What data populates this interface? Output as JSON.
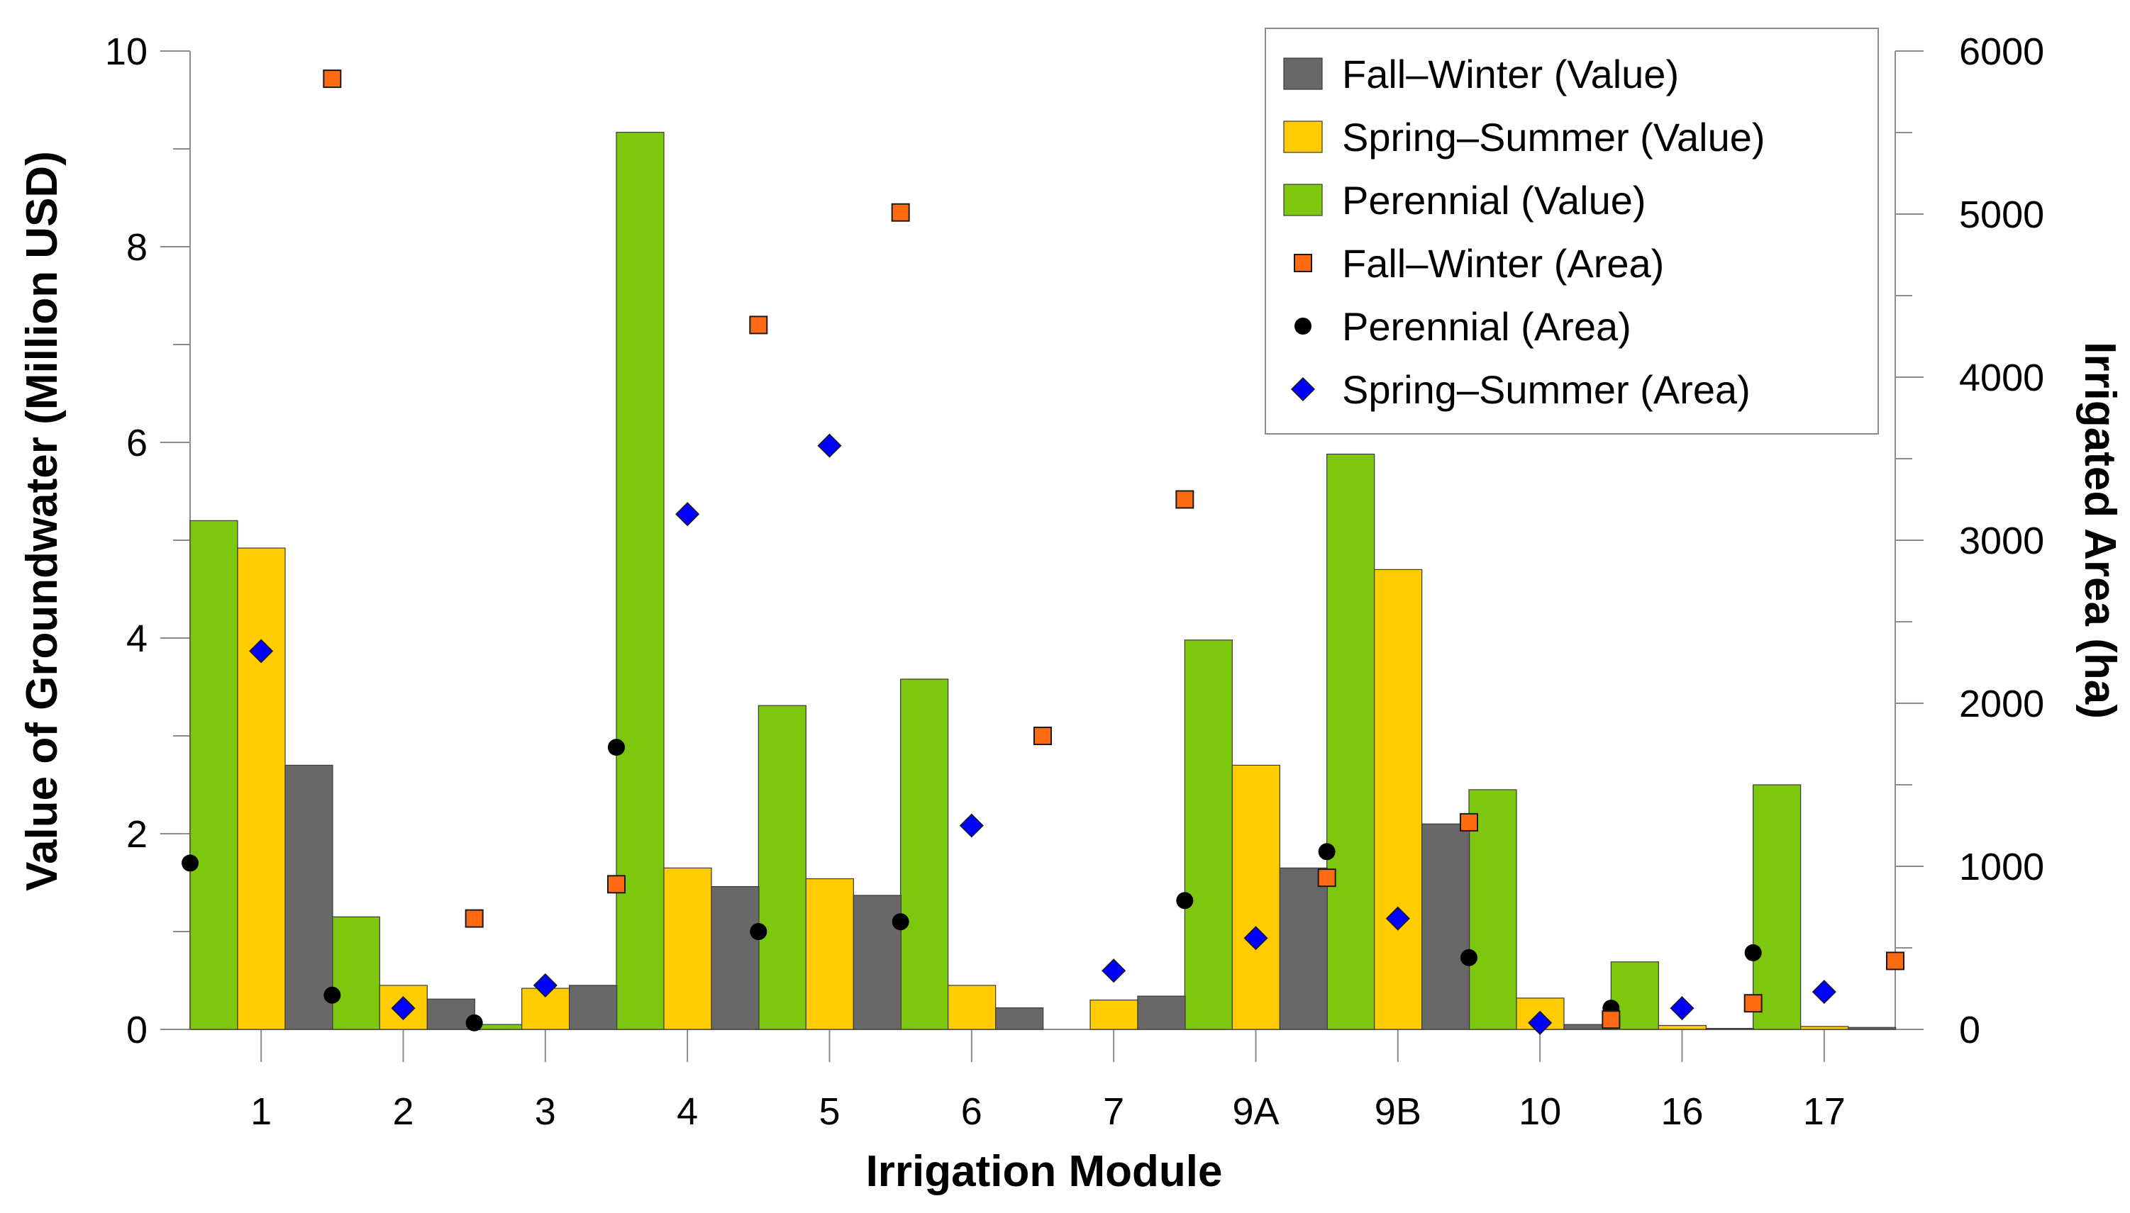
{
  "chart_data": {
    "type": "bar",
    "xlabel": "Irrigation Module",
    "ylabel": "Value of Groundwater (Million USD)",
    "y2label": "Irrigated Area (ha)",
    "categories": [
      "1",
      "2",
      "3",
      "4",
      "5",
      "6",
      "7",
      "9A",
      "9B",
      "10",
      "16",
      "17"
    ],
    "ylim": [
      0,
      10
    ],
    "y2lim": [
      0,
      6000
    ],
    "yticks": [
      "0",
      "2",
      "4",
      "6",
      "8",
      "10"
    ],
    "y2ticks": [
      "0",
      "1000",
      "2000",
      "3000",
      "4000",
      "5000",
      "6000"
    ],
    "series": [
      {
        "name": "Perennial (Value)",
        "kind": "bar",
        "axis": "left",
        "color": "#7dc80e",
        "values": [
          5.2,
          1.15,
          0.05,
          9.17,
          3.31,
          3.58,
          0.0,
          3.98,
          5.88,
          2.45,
          0.69,
          2.5
        ]
      },
      {
        "name": "Spring–Summer (Value)",
        "kind": "bar",
        "axis": "left",
        "color": "#ffcc00",
        "values": [
          4.92,
          0.45,
          0.42,
          1.65,
          1.54,
          0.45,
          0.3,
          2.7,
          4.7,
          0.32,
          0.04,
          0.03
        ]
      },
      {
        "name": "Fall–Winter (Value)",
        "kind": "bar",
        "axis": "left",
        "color": "#686868",
        "values": [
          2.7,
          0.31,
          0.45,
          1.46,
          1.37,
          0.22,
          0.34,
          1.65,
          2.1,
          0.05,
          0.01,
          0.02
        ]
      },
      {
        "name": "Perennial (Area)",
        "kind": "scatter",
        "marker": "circle",
        "axis": "right",
        "color": "#000000",
        "values": [
          1020,
          210,
          40,
          1730,
          600,
          660,
          null,
          790,
          1090,
          440,
          130,
          470
        ]
      },
      {
        "name": "Spring–Summer (Area)",
        "kind": "scatter",
        "marker": "diamond",
        "axis": "right",
        "color": "#0000ff",
        "values": [
          2320,
          130,
          270,
          3160,
          3580,
          1250,
          360,
          560,
          680,
          40,
          130,
          230
        ]
      },
      {
        "name": "Fall–Winter (Area)",
        "kind": "scatter",
        "marker": "square",
        "axis": "right",
        "color": "#ff6a13",
        "values": [
          5830,
          680,
          890,
          4320,
          5010,
          1800,
          3250,
          930,
          1270,
          60,
          160,
          420
        ]
      }
    ],
    "legend": {
      "position": "top-right",
      "entries": [
        {
          "label": "Fall–Winter (Value)",
          "marker": "bar",
          "color": "#686868"
        },
        {
          "label": "Spring–Summer (Value)",
          "marker": "bar",
          "color": "#ffcc00"
        },
        {
          "label": "Perennial (Value)",
          "marker": "bar",
          "color": "#7dc80e"
        },
        {
          "label": "Fall–Winter (Area)",
          "marker": "square",
          "color": "#ff6a13"
        },
        {
          "label": "Perennial (Area)",
          "marker": "circle",
          "color": "#000000"
        },
        {
          "label": "Spring–Summer (Area)",
          "marker": "diamond",
          "color": "#0000ff"
        }
      ]
    }
  }
}
